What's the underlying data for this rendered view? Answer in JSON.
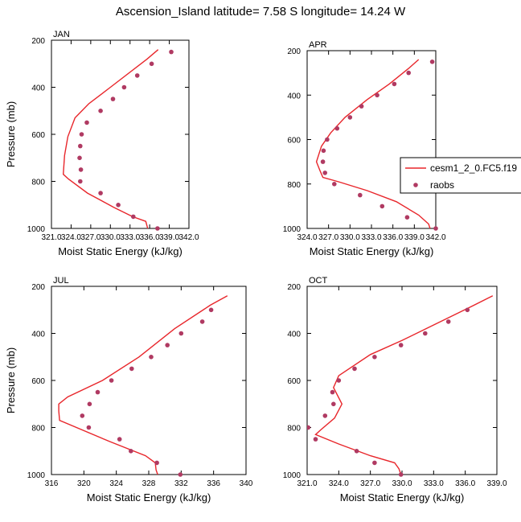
{
  "title": "Ascension_Island  latitude= 7.58 S longitude= 14.24 W",
  "colors": {
    "model": "#e8262b",
    "obs": "#b03a62",
    "axis": "#000000"
  },
  "legend": {
    "entries": [
      "cesm1_2_0.FC5.f19",
      "raobs"
    ],
    "placement": "right of APR panel"
  },
  "chart_data": [
    {
      "type": "scatter",
      "panel": "JAN",
      "xlabel": "Moist Static Energy (kJ/kg)",
      "ylabel": "Pressure (mb)",
      "xlim": [
        321.0,
        342.0
      ],
      "ylim": [
        1000,
        200
      ],
      "xticks": [
        "321.0",
        "324.0",
        "327.0",
        "330.0",
        "333.0",
        "336.0",
        "339.0",
        "342.0"
      ],
      "yticks": [
        "200",
        "400",
        "600",
        "800",
        "1000"
      ],
      "series": [
        {
          "name": "cesm1_2_0.FC5.f19",
          "style": "line",
          "x": [
            337.3,
            335.6,
            330.0,
            326.7,
            324.6,
            323.5,
            323.0,
            322.8,
            322.8,
            323.6,
            326.5,
            330.5,
            333.4,
            335.4,
            335.7
          ],
          "y": [
            240,
            280,
            400,
            470,
            530,
            610,
            690,
            770,
            770,
            790,
            850,
            910,
            950,
            970,
            1000
          ]
        },
        {
          "name": "raobs",
          "style": "markers",
          "x": [
            339.3,
            336.3,
            334.1,
            332.1,
            330.4,
            328.5,
            326.4,
            325.6,
            325.4,
            325.3,
            325.5,
            325.4,
            328.5,
            331.2,
            333.5,
            337.2
          ],
          "y": [
            250,
            300,
            350,
            400,
            450,
            500,
            550,
            600,
            650,
            700,
            750,
            800,
            850,
            900,
            950,
            1000
          ]
        }
      ]
    },
    {
      "type": "scatter",
      "panel": "APR",
      "xlabel": "Moist Static Energy (kJ/kg)",
      "ylabel": "",
      "xlim": [
        324.0,
        342.0
      ],
      "ylim": [
        1000,
        200
      ],
      "xticks": [
        "324.0",
        "327.0",
        "330.0",
        "333.0",
        "336.0",
        "339.0",
        "342.0"
      ],
      "yticks": [
        "200",
        "400",
        "600",
        "800",
        "1000"
      ],
      "series": [
        {
          "name": "cesm1_2_0.FC5.f19",
          "style": "line",
          "x": [
            339.6,
            338.2,
            335.5,
            332.4,
            329.3,
            327.3,
            326.0,
            325.3,
            325.8,
            326.2,
            328.4,
            332.4,
            336.5,
            339.6,
            341.0,
            341.2
          ],
          "y": [
            240,
            280,
            350,
            420,
            500,
            570,
            630,
            700,
            740,
            770,
            790,
            830,
            880,
            940,
            980,
            1000
          ]
        },
        {
          "name": "raobs",
          "style": "markers",
          "x": [
            341.5,
            338.2,
            336.2,
            333.8,
            331.6,
            330.0,
            328.2,
            326.8,
            326.3,
            326.2,
            326.5,
            327.8,
            331.4,
            334.5,
            338.0,
            342.0
          ],
          "y": [
            250,
            300,
            350,
            400,
            450,
            500,
            550,
            600,
            650,
            700,
            750,
            800,
            850,
            900,
            950,
            1000
          ]
        }
      ]
    },
    {
      "type": "scatter",
      "panel": "JUL",
      "xlabel": "Moist Static Energy (kJ/kg)",
      "ylabel": "Pressure (mb)",
      "xlim": [
        316,
        340
      ],
      "ylim": [
        1000,
        200
      ],
      "xticks": [
        "316",
        "320",
        "324",
        "328",
        "332",
        "336",
        "340"
      ],
      "yticks": [
        "200",
        "400",
        "600",
        "800",
        "1000"
      ],
      "series": [
        {
          "name": "cesm1_2_0.FC5.f19",
          "style": "line",
          "x": [
            337.7,
            335.6,
            331.2,
            326.8,
            322.3,
            318.0,
            316.9,
            316.9,
            317.0,
            323.2,
            327.6,
            328.8,
            328.9,
            329.1
          ],
          "y": [
            240,
            280,
            380,
            500,
            600,
            670,
            700,
            730,
            770,
            860,
            920,
            950,
            980,
            1000
          ]
        },
        {
          "name": "raobs",
          "style": "markers",
          "x": [
            335.7,
            334.6,
            332.0,
            330.3,
            328.3,
            325.9,
            323.4,
            321.7,
            320.7,
            319.8,
            320.6,
            324.4,
            325.8,
            329.0,
            331.9
          ],
          "y": [
            300,
            350,
            400,
            450,
            500,
            550,
            600,
            650,
            700,
            750,
            800,
            850,
            900,
            950,
            1000
          ]
        }
      ]
    },
    {
      "type": "scatter",
      "panel": "OCT",
      "xlabel": "Moist Static Energy (kJ/kg)",
      "ylabel": "",
      "xlim": [
        321.0,
        339.0
      ],
      "ylim": [
        1000,
        200
      ],
      "xticks": [
        "321.0",
        "324.0",
        "327.0",
        "330.0",
        "333.0",
        "336.0",
        "339.0"
      ],
      "yticks": [
        "200",
        "400",
        "600",
        "800",
        "1000"
      ],
      "series": [
        {
          "name": "cesm1_2_0.FC5.f19",
          "style": "line",
          "x": [
            338.6,
            336.4,
            333.2,
            330.0,
            327.0,
            324.0,
            323.5,
            324.3,
            323.6,
            322.3,
            321.8,
            324.0,
            327.0,
            329.3,
            329.7,
            329.9
          ],
          "y": [
            240,
            290,
            360,
            430,
            490,
            580,
            630,
            700,
            760,
            810,
            830,
            870,
            920,
            950,
            975,
            1000
          ]
        },
        {
          "name": "raobs",
          "style": "markers",
          "x": [
            336.2,
            334.4,
            332.2,
            329.9,
            327.4,
            325.5,
            324.0,
            323.4,
            323.5,
            322.7,
            321.1,
            321.8,
            325.7,
            327.4,
            329.9
          ],
          "y": [
            300,
            350,
            400,
            450,
            500,
            550,
            600,
            650,
            700,
            750,
            800,
            850,
            900,
            950,
            1000
          ]
        }
      ]
    }
  ]
}
